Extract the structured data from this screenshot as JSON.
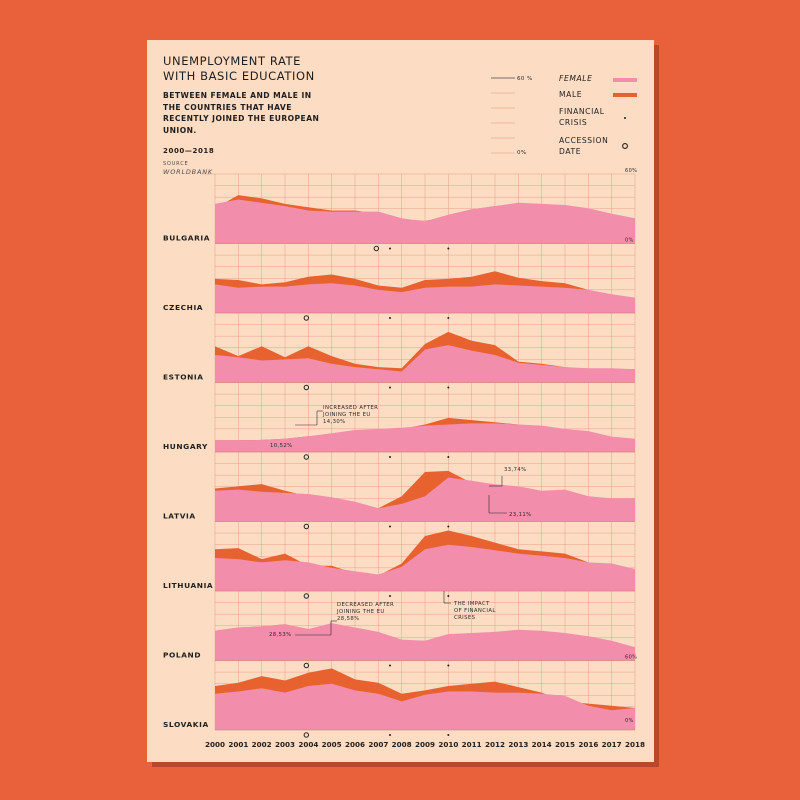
{
  "header": {
    "title_line1": "UNEMPLOYMENT RATE",
    "title_line2": "WITH BASIC EDUCATION",
    "subtitle": "BETWEEN FEMALE AND MALE IN THE COUNTRIES THAT HAVE RECENTLY JOINED THE EUROPEAN UNION.",
    "years": "2000—2018",
    "source_label": "SOURCE",
    "source": "WORLDBANK"
  },
  "legend": {
    "female": "FEMALE",
    "male": "MALE",
    "crisis": "FINANCIAL CRISIS",
    "accession": "ACCESSION DATE",
    "scale_top": "60 %",
    "scale_bottom": "0%"
  },
  "colors": {
    "background": "#e8613a",
    "poster": "#fcdcc3",
    "female": "#f28dac",
    "male": "#e8622f",
    "grid": "#e4907e"
  },
  "chart_data": {
    "type": "area",
    "x": [
      2000,
      2001,
      2002,
      2003,
      2004,
      2005,
      2006,
      2007,
      2008,
      2009,
      2010,
      2011,
      2012,
      2013,
      2014,
      2015,
      2016,
      2017,
      2018
    ],
    "x_tick_labels": [
      "2000",
      "2001",
      "2002",
      "2003",
      "2004",
      "2005",
      "2006",
      "2007",
      "2008",
      "2009",
      "2010",
      "2011",
      "2012",
      "2013",
      "2014",
      "2015",
      "2016",
      "2017",
      "2018"
    ],
    "ylim": [
      0,
      60
    ],
    "y_tick_labels": {
      "top": "60%",
      "bottom": "0%"
    },
    "financial_crisis_years": [
      2007.5,
      2010
    ],
    "countries": [
      {
        "name": "BULGARIA",
        "accession": 2007,
        "female": [
          36,
          40,
          37,
          34,
          30,
          29,
          29,
          29,
          23,
          20,
          26,
          31,
          34,
          37,
          36,
          35,
          32,
          27,
          23
        ],
        "male": [
          32,
          44,
          41,
          36,
          33,
          30,
          30,
          27,
          22,
          20,
          26,
          31,
          34,
          36,
          35,
          32,
          29,
          25,
          19
        ]
      },
      {
        "name": "CZECHIA",
        "accession": 2004,
        "female": [
          26,
          23,
          24,
          24,
          26,
          27,
          25,
          21,
          19,
          23,
          24,
          24,
          26,
          25,
          24,
          23,
          21,
          17,
          14
        ],
        "male": [
          31,
          30,
          26,
          28,
          33,
          35,
          31,
          25,
          23,
          30,
          31,
          33,
          38,
          32,
          29,
          27,
          21,
          15,
          13
        ]
      },
      {
        "name": "ESTONIA",
        "accession": 2004,
        "female": [
          25,
          23,
          20,
          21,
          22,
          17,
          14,
          12,
          10,
          30,
          34,
          29,
          25,
          18,
          16,
          14,
          13,
          13,
          12
        ],
        "male": [
          33,
          24,
          33,
          23,
          33,
          24,
          17,
          14,
          13,
          35,
          46,
          38,
          34,
          19,
          17,
          14,
          12,
          12,
          12
        ]
      },
      {
        "name": "HUNGARY",
        "accession": 2004,
        "female": [
          10.5,
          10.5,
          11,
          12,
          14.3,
          17,
          20,
          21,
          22,
          24,
          25,
          26,
          26,
          25,
          24,
          21,
          19,
          14,
          12
        ],
        "male": [
          10.5,
          10.5,
          11,
          12,
          14.3,
          16,
          18,
          19,
          21,
          25,
          31,
          29,
          27,
          25,
          19,
          17,
          14,
          12,
          11
        ]
      },
      {
        "name": "LATVIA",
        "accession": 2004,
        "female": [
          28,
          29,
          27,
          26,
          25,
          22,
          18,
          12,
          16,
          23,
          40,
          37,
          33.7,
          32,
          28,
          29,
          23,
          21,
          21
        ],
        "male": [
          30,
          32,
          34,
          28,
          23,
          20,
          16,
          12,
          23,
          45,
          46,
          35,
          29,
          24,
          22,
          21,
          23,
          20,
          19
        ]
      },
      {
        "name": "LITHUANIA",
        "accession": 2004,
        "female": [
          30,
          29,
          26,
          28,
          26,
          21,
          18,
          15,
          22,
          38,
          42,
          40,
          37,
          34,
          32,
          30,
          26,
          25,
          20
        ],
        "male": [
          38,
          39,
          29,
          34,
          23,
          23,
          16,
          14,
          25,
          50,
          55,
          50,
          44,
          38,
          36,
          34,
          26,
          22,
          16
        ]
      },
      {
        "name": "POLAND",
        "accession": 2004,
        "female": [
          27,
          30,
          31,
          33,
          28.5,
          34,
          30,
          26,
          19,
          18,
          24,
          25,
          26,
          28,
          27,
          25,
          22,
          18,
          12
        ],
        "male": [
          27,
          30,
          31,
          33,
          28.5,
          28.6,
          24,
          21,
          17,
          18,
          21,
          23,
          24,
          24,
          23,
          21,
          19,
          16,
          12
        ]
      },
      {
        "name": "SLOVAKIA",
        "accession": 2004,
        "female": [
          33,
          35,
          38,
          34,
          40,
          42,
          36,
          33,
          26,
          32,
          35,
          35,
          34,
          34,
          33,
          31,
          22,
          18,
          20
        ],
        "male": [
          40,
          43,
          49,
          45,
          52,
          56,
          46,
          43,
          33,
          36,
          40,
          42,
          44,
          39,
          34,
          26,
          24,
          22,
          20
        ]
      }
    ]
  },
  "annotations": {
    "hungary_note_line1": "INCREASED AFTER",
    "hungary_note_line2": "JOINING THE EU",
    "hungary_after": "14,30%",
    "hungary_before": "10,52%",
    "latvia_high": "33,74%",
    "latvia_low": "23,11%",
    "lithuania_note_line1": "THE IMPACT",
    "lithuania_note_line2": "OF FINANCIAL",
    "lithuania_note_line3": "CRISES",
    "poland_note_line1": "DECREASED AFTER",
    "poland_note_line2": "JOINING THE EU",
    "poland_after": "28,58%",
    "poland_before": "28,53%"
  }
}
